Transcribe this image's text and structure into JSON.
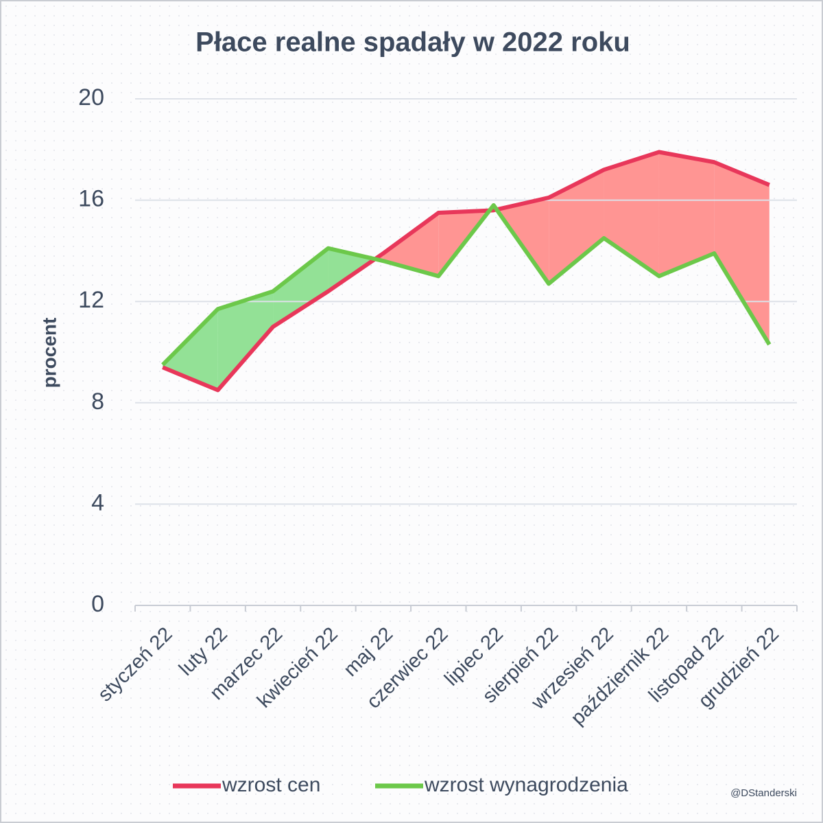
{
  "chart_data": {
    "type": "line",
    "title": "Płace realne spadały w 2022 roku",
    "y_label": "procent",
    "credit": "@DStanderski",
    "categories": [
      "styczeń 22",
      "luty 22",
      "marzec 22",
      "kwiecień 22",
      "maj 22",
      "czerwiec 22",
      "lipiec 22",
      "sierpień 22",
      "wrzesień 22",
      "październik 22",
      "listopad 22",
      "grudzień 22"
    ],
    "series": [
      {
        "name": "wzrost cen",
        "color": "#e8375a",
        "values": [
          9.4,
          8.5,
          11.0,
          12.4,
          13.9,
          15.5,
          15.6,
          16.1,
          17.2,
          17.9,
          17.5,
          16.6
        ]
      },
      {
        "name": "wzrost wynagrodzenia",
        "color": "#6cc84a",
        "values": [
          9.5,
          11.7,
          12.4,
          14.1,
          13.6,
          13.0,
          15.8,
          12.7,
          14.5,
          13.0,
          13.9,
          10.3
        ]
      }
    ],
    "fill_between": {
      "second_higher_color": "#93e196",
      "first_higher_color": "#ff9593"
    },
    "ylim": [
      0,
      20
    ],
    "yticks": [
      0,
      4,
      8,
      12,
      16,
      20
    ],
    "grid": true,
    "legend": "bottom"
  }
}
